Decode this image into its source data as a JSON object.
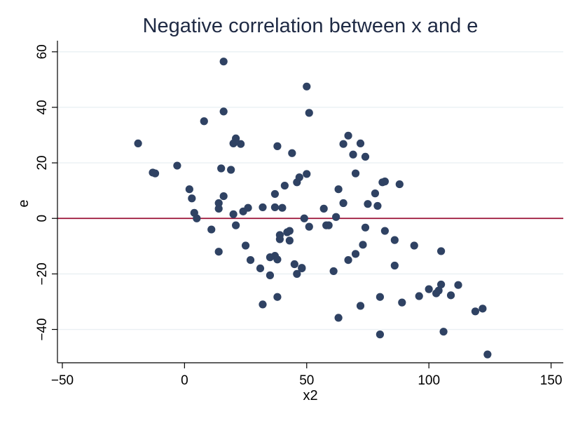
{
  "chart_data": {
    "type": "scatter",
    "title": "Negative correlation between x and e",
    "xlabel": "x2",
    "ylabel": "e",
    "xlim": [
      -52,
      155
    ],
    "ylim": [
      -52,
      64
    ],
    "xticks": [
      -50,
      0,
      50,
      100,
      150
    ],
    "yticks": [
      -40,
      -20,
      0,
      20,
      40,
      60
    ],
    "ytick_labels": [
      "−40",
      "−20",
      "0",
      "20",
      "40",
      "60"
    ],
    "xtick_labels": [
      "−50",
      "0",
      "50",
      "100",
      "150"
    ],
    "grid": true,
    "reference_line_y": 0,
    "colors": {
      "points": "#2f4263",
      "refline": "#9b1236",
      "grid": "#eaf0f3"
    },
    "points": [
      [
        -19,
        27
      ],
      [
        -13,
        16.5
      ],
      [
        -12,
        16.2
      ],
      [
        -3,
        19
      ],
      [
        2,
        10.5
      ],
      [
        3,
        7.2
      ],
      [
        4,
        2
      ],
      [
        5,
        0
      ],
      [
        8,
        35
      ],
      [
        11,
        -4
      ],
      [
        14,
        5.5
      ],
      [
        14,
        3.5
      ],
      [
        14,
        -12
      ],
      [
        15,
        18
      ],
      [
        16,
        8
      ],
      [
        16,
        38.5
      ],
      [
        16,
        56.5
      ],
      [
        19,
        17.5
      ],
      [
        20,
        27
      ],
      [
        21,
        28.8
      ],
      [
        20,
        1.5
      ],
      [
        21,
        -2.5
      ],
      [
        23,
        26.8
      ],
      [
        24,
        2.5
      ],
      [
        25,
        -9.8
      ],
      [
        26,
        3.8
      ],
      [
        27,
        -15
      ],
      [
        31,
        -18
      ],
      [
        32,
        4
      ],
      [
        32,
        -31
      ],
      [
        35,
        -14
      ],
      [
        35,
        -20.5
      ],
      [
        37,
        8.8
      ],
      [
        37,
        -13.5
      ],
      [
        37,
        4
      ],
      [
        38,
        26
      ],
      [
        38,
        -14.8
      ],
      [
        38,
        -28.3
      ],
      [
        39,
        -6
      ],
      [
        39,
        -7.5
      ],
      [
        40,
        3.8
      ],
      [
        41,
        11.8
      ],
      [
        42,
        -5
      ],
      [
        43,
        -8
      ],
      [
        43,
        -4.5
      ],
      [
        44,
        23.5
      ],
      [
        45,
        -16.5
      ],
      [
        46,
        13
      ],
      [
        46,
        -20
      ],
      [
        47,
        14.8
      ],
      [
        48,
        -17.8
      ],
      [
        48,
        -18
      ],
      [
        49,
        0
      ],
      [
        50,
        16
      ],
      [
        51,
        -3
      ],
      [
        51,
        38
      ],
      [
        50,
        47.5
      ],
      [
        57,
        3.5
      ],
      [
        58,
        -2.5
      ],
      [
        59,
        -2.5
      ],
      [
        61,
        -19
      ],
      [
        62,
        0.5
      ],
      [
        63,
        10.5
      ],
      [
        63,
        -35.8
      ],
      [
        65,
        26.8
      ],
      [
        65,
        5.5
      ],
      [
        67,
        -15
      ],
      [
        67,
        29.8
      ],
      [
        69,
        23
      ],
      [
        70,
        16.2
      ],
      [
        70,
        -12.8
      ],
      [
        72,
        27
      ],
      [
        72,
        -31.5
      ],
      [
        73,
        -9.5
      ],
      [
        74,
        22.2
      ],
      [
        74,
        -3.3
      ],
      [
        75,
        5.2
      ],
      [
        78,
        9
      ],
      [
        79,
        4.5
      ],
      [
        80,
        -28.3
      ],
      [
        80,
        -41.8
      ],
      [
        81,
        13
      ],
      [
        82,
        13.3
      ],
      [
        82,
        -4.5
      ],
      [
        86,
        -7.8
      ],
      [
        86,
        -17
      ],
      [
        88,
        12.3
      ],
      [
        89,
        -30.3
      ],
      [
        94,
        -9.8
      ],
      [
        96,
        -28
      ],
      [
        100,
        -25.5
      ],
      [
        103,
        -27
      ],
      [
        104,
        -26
      ],
      [
        105,
        -11.8
      ],
      [
        105,
        -23.8
      ],
      [
        106,
        -40.8
      ],
      [
        109,
        -27.7
      ],
      [
        112,
        -24
      ],
      [
        119,
        -33.5
      ],
      [
        122,
        -32.5
      ],
      [
        124,
        -49
      ]
    ]
  }
}
